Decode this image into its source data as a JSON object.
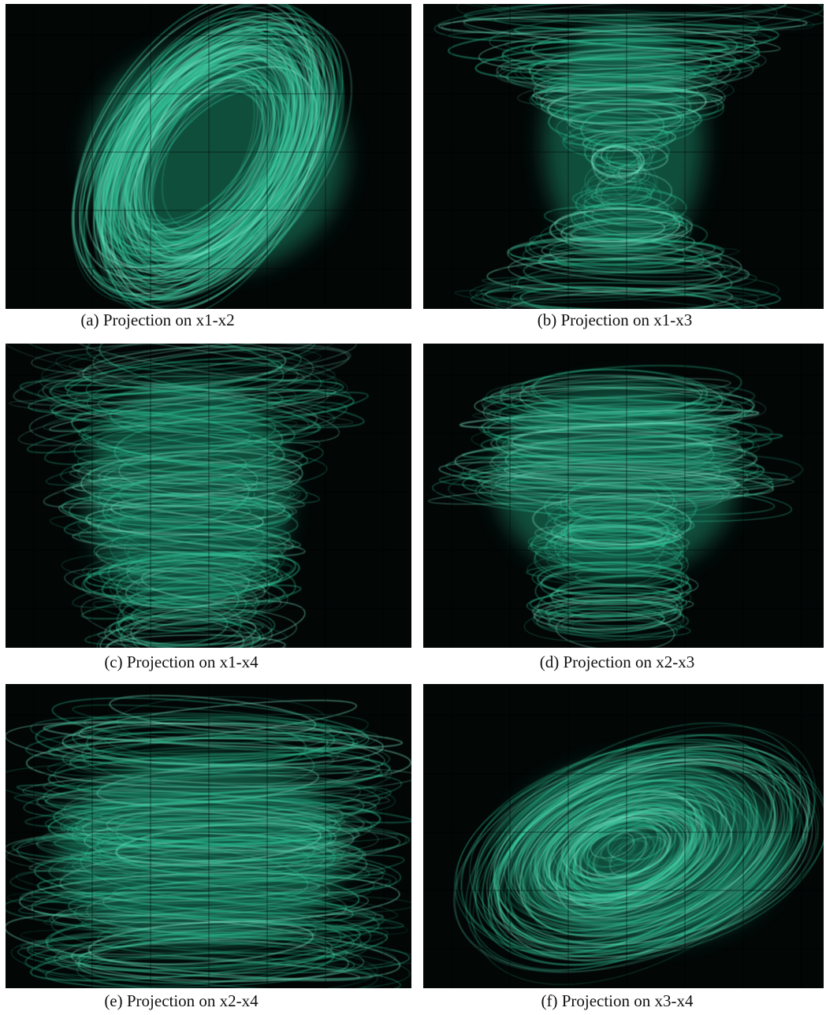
{
  "panels": [
    {
      "caption": "(a) Projection on x1-x2"
    },
    {
      "caption": "(b) Projection on x1-x3"
    },
    {
      "caption": "(c) Projection on x1-x4"
    },
    {
      "caption": "(d) Projection on x2-x3"
    },
    {
      "caption": "(e) Projection on x2-x4"
    },
    {
      "caption": "(f) Projection on x3-x4"
    }
  ]
}
